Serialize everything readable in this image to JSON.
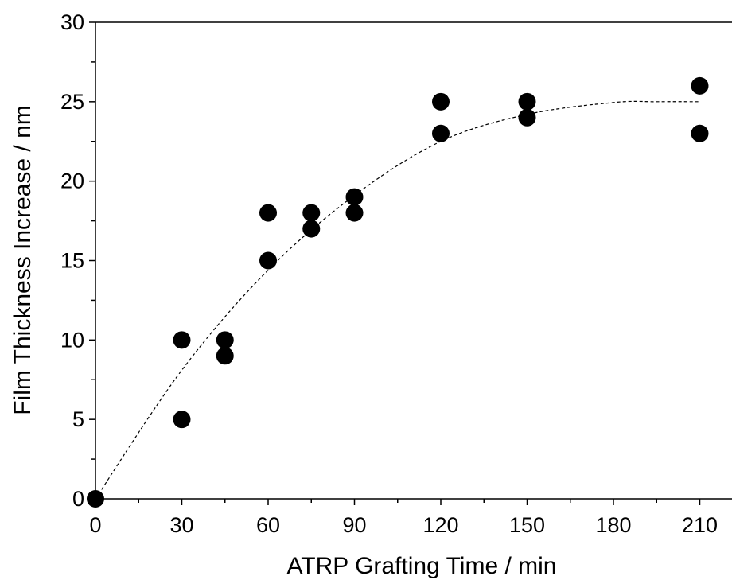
{
  "chart_data": {
    "type": "scatter",
    "title": "",
    "xlabel": "ATRP Grafting Time / min",
    "ylabel": "Film Thickness Increase / nm",
    "xlim": [
      0,
      225
    ],
    "ylim": [
      0,
      30
    ],
    "x_ticks": [
      0,
      30,
      60,
      90,
      120,
      150,
      180,
      210
    ],
    "x_tick_labels": [
      "0",
      "30",
      "60",
      "90",
      "120",
      "150",
      "180",
      "210"
    ],
    "y_ticks": [
      0,
      5,
      10,
      15,
      20,
      25,
      30
    ],
    "y_tick_labels": [
      "0",
      "5",
      "10",
      "15",
      "20",
      "25",
      "30"
    ],
    "grid": false,
    "legend": "none",
    "marker_color": "#000000",
    "series": [
      {
        "points": [
          {
            "x": 0,
            "y": 0
          },
          {
            "x": 30,
            "y": 10
          },
          {
            "x": 30,
            "y": 5
          },
          {
            "x": 45,
            "y": 10
          },
          {
            "x": 45,
            "y": 9
          },
          {
            "x": 60,
            "y": 18
          },
          {
            "x": 60,
            "y": 15
          },
          {
            "x": 75,
            "y": 18
          },
          {
            "x": 75,
            "y": 17
          },
          {
            "x": 90,
            "y": 19
          },
          {
            "x": 90,
            "y": 18
          },
          {
            "x": 120,
            "y": 25
          },
          {
            "x": 120,
            "y": 23
          },
          {
            "x": 150,
            "y": 25
          },
          {
            "x": 150,
            "y": 24
          },
          {
            "x": 210,
            "y": 26
          },
          {
            "x": 210,
            "y": 23
          }
        ]
      }
    ],
    "fit_curve": {
      "style": "dashed",
      "color": "#000000",
      "x": [
        0,
        30,
        60,
        90,
        120,
        150,
        180,
        195,
        210
      ],
      "y": [
        0,
        8.1,
        14.4,
        19.1,
        22.5,
        24.2,
        24.95,
        25.0,
        25.0
      ]
    }
  }
}
